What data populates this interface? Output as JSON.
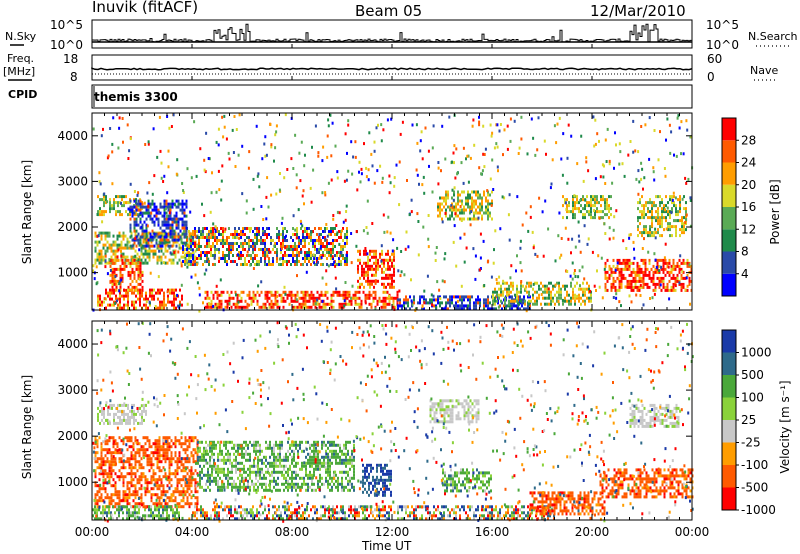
{
  "header": {
    "station": "Inuvik (fitACF)",
    "beam": "Beam 05",
    "date": "12/Mar/2010"
  },
  "panels": {
    "nsky_label": "N.Sky",
    "nsearch_label": "N.Search",
    "nsky_ticks": [
      "10^5",
      "10^0"
    ],
    "nsearch_ticks": [
      "10^5",
      "10^0"
    ],
    "freq_label_1": "Freq.",
    "freq_label_2": "[MHz]",
    "freq_ticks": [
      "18",
      "8"
    ],
    "nave_label": "Nave",
    "nave_ticks": [
      "60",
      "0"
    ],
    "cpid_label": "CPID",
    "cpid_value": "themis 3300"
  },
  "colors": {
    "power": [
      "#0000ff",
      "#2a4aa8",
      "#1f8a4a",
      "#5aaa55",
      "#d9d92a",
      "#ff9d00",
      "#ff5a00",
      "#ff0000"
    ],
    "velocity": [
      "#ff0000",
      "#ff5a00",
      "#ff9d00",
      "#c8c8c8",
      "#8ad23a",
      "#4aa83a",
      "#2e6a8a",
      "#1a3aa8"
    ]
  },
  "chart_data": [
    {
      "type": "heatmap",
      "name": "power",
      "ylabel": "Slant Range [km]",
      "yticks": [
        1000,
        2000,
        3000,
        4000
      ],
      "ylim": [
        180,
        4500
      ],
      "xlim": [
        0,
        24
      ],
      "xticks": [
        "00:00",
        "04:00",
        "08:00",
        "12:00",
        "16:00",
        "20:00",
        "00:00"
      ],
      "colorbar_label": "Power [dB]",
      "colorbar_ticks": [
        "28",
        "24",
        "20",
        "16",
        "12",
        "8",
        "4"
      ]
    },
    {
      "type": "heatmap",
      "name": "velocity",
      "ylabel": "Slant Range [km]",
      "yticks": [
        1000,
        2000,
        3000,
        4000
      ],
      "ylim": [
        180,
        4500
      ],
      "xlim": [
        0,
        24
      ],
      "xticks": [
        "00:00",
        "04:00",
        "08:00",
        "12:00",
        "16:00",
        "20:00",
        "00:00"
      ],
      "xlabel": "Time UT",
      "colorbar_label": "Velocity [m s⁻¹]",
      "colorbar_ticks": [
        "1000",
        "500",
        "100",
        "25",
        "-25",
        "-100",
        "-500",
        "-1000"
      ]
    }
  ]
}
